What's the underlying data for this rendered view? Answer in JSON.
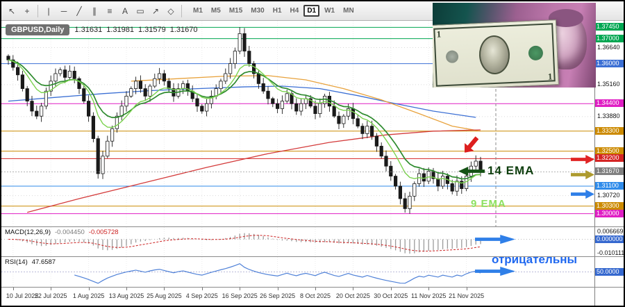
{
  "header": {
    "symbol": "GBPUSD,Daily",
    "open": "1.31631",
    "high": "1.31981",
    "low": "1.31579",
    "close": "1.31670"
  },
  "toolbar": {
    "tools": [
      {
        "name": "cursor",
        "glyph": "↖"
      },
      {
        "name": "crosshair",
        "glyph": "+"
      },
      {
        "sep": true
      },
      {
        "name": "vertical-line",
        "glyph": "|"
      },
      {
        "name": "horizontal-line",
        "glyph": "─"
      },
      {
        "name": "trendline",
        "glyph": "╱"
      },
      {
        "name": "equidistant-channel",
        "glyph": "∥"
      },
      {
        "name": "fibonacci",
        "glyph": "≡"
      },
      {
        "name": "text",
        "glyph": "A"
      },
      {
        "name": "text-label",
        "glyph": "▭"
      },
      {
        "name": "arrows",
        "glyph": "↗"
      },
      {
        "name": "shapes",
        "glyph": "◇"
      },
      {
        "sep": true
      }
    ],
    "timeframes": [
      {
        "label": "M1"
      },
      {
        "label": "M5"
      },
      {
        "label": "M15"
      },
      {
        "label": "M30"
      },
      {
        "label": "H1"
      },
      {
        "label": "H4"
      },
      {
        "label": "D1",
        "active": true
      },
      {
        "label": "W1"
      },
      {
        "label": "MN"
      }
    ]
  },
  "indicators": {
    "macd": {
      "name": "MACD(12,26,9)",
      "value_main": "-0.004450",
      "value_signal": "-0.005728",
      "axis": [
        {
          "t": "0.006669",
          "v": 0.006669
        },
        {
          "t": "0.000000",
          "v": 0,
          "bg": "#3568cf"
        },
        {
          "t": "-0.010111",
          "v": -0.010111
        }
      ]
    },
    "rsi": {
      "name": "RSI(14)",
      "value": "47.6587",
      "axis": [
        {
          "t": "50.0000",
          "v": 50,
          "bg": "#3568cf"
        }
      ]
    }
  },
  "annotations": {
    "ema14": "14 EMA",
    "ema9": "9 EMA",
    "negative": "отрицательны"
  },
  "photo": {
    "dollar_numeral": "1"
  },
  "chart_data": {
    "type": "candlestick",
    "symbol": "GBPUSD",
    "timeframe": "Daily",
    "last_price": 1.3167,
    "price_range": [
      1.296,
      1.376
    ],
    "x_labels": [
      [
        "10 Jul 2025",
        1
      ],
      [
        "22 Jul 2025",
        9
      ],
      [
        "1 Aug 2025",
        17
      ],
      [
        "13 Aug 2025",
        25
      ],
      [
        "25 Aug 2025",
        33
      ],
      [
        "4 Sep 2025",
        41
      ],
      [
        "16 Sep 2025",
        49
      ],
      [
        "26 Sep 2025",
        57
      ],
      [
        "8 Oct 2025",
        65
      ],
      [
        "20 Oct 2025",
        73
      ],
      [
        "30 Oct 2025",
        81
      ],
      [
        "11 Nov 2025",
        89
      ],
      [
        "21 Nov 2025",
        97
      ]
    ],
    "closes": [
      1.3615,
      1.3585,
      1.3555,
      1.35,
      1.345,
      1.341,
      1.339,
      1.343,
      1.349,
      1.353,
      1.356,
      1.3575,
      1.3545,
      1.357,
      1.354,
      1.35,
      1.345,
      1.339,
      1.33,
      1.316,
      1.323,
      1.329,
      1.334,
      1.339,
      1.343,
      1.347,
      1.35,
      1.353,
      1.35,
      1.347,
      1.351,
      1.354,
      1.356,
      1.353,
      1.35,
      1.347,
      1.35,
      1.352,
      1.349,
      1.346,
      1.343,
      1.341,
      1.344,
      1.347,
      1.35,
      1.353,
      1.356,
      1.36,
      1.365,
      1.372,
      1.365,
      1.36,
      1.356,
      1.352,
      1.349,
      1.346,
      1.344,
      1.342,
      1.345,
      1.348,
      1.344,
      1.341,
      1.344,
      1.346,
      1.343,
      1.34,
      1.344,
      1.347,
      1.343,
      1.339,
      1.336,
      1.339,
      1.342,
      1.338,
      1.335,
      1.332,
      1.335,
      1.331,
      1.327,
      1.323,
      1.319,
      1.315,
      1.311,
      1.306,
      1.302,
      1.307,
      1.312,
      1.316,
      1.313,
      1.317,
      1.314,
      1.311,
      1.315,
      1.312,
      1.309,
      1.313,
      1.31,
      1.315,
      1.319,
      1.321,
      1.3167
    ],
    "grid_levels": [
      1.3664,
      1.3516,
      1.3388,
      1.3072
    ],
    "hlines": [
      {
        "price": 1.3745,
        "color": "#00a651"
      },
      {
        "price": 1.37,
        "color": "#00a651"
      },
      {
        "price": 1.36,
        "color": "#3b6fd4"
      },
      {
        "price": 1.344,
        "color": "#e01ec4"
      },
      {
        "price": 1.333,
        "color": "#cc8a00"
      },
      {
        "price": 1.325,
        "color": "#cc8a00"
      },
      {
        "price": 1.322,
        "color": "#d42424"
      },
      {
        "price": 1.311,
        "color": "#2f8bea"
      },
      {
        "price": 1.303,
        "color": "#cc8a00"
      },
      {
        "price": 1.3,
        "color": "#e01ec4"
      }
    ],
    "price_axis": [
      {
        "t": "1.37450",
        "p": 1.3745,
        "bg": "#00a651"
      },
      {
        "t": "1.37000",
        "p": 1.37,
        "bg": "#00a651"
      },
      {
        "t": "1.36640",
        "p": 1.3664
      },
      {
        "t": "1.36000",
        "p": 1.36,
        "bg": "#3b6fd4"
      },
      {
        "t": "1.35160",
        "p": 1.3516
      },
      {
        "t": "1.34400",
        "p": 1.344,
        "bg": "#e01ec4"
      },
      {
        "t": "1.33880",
        "p": 1.3388
      },
      {
        "t": "1.33300",
        "p": 1.333,
        "bg": "#cc8a00"
      },
      {
        "t": "1.32500",
        "p": 1.325,
        "bg": "#cc8a00"
      },
      {
        "t": "1.32200",
        "p": 1.322,
        "bg": "#d42424"
      },
      {
        "t": "1.31670",
        "p": 1.3167,
        "bg": "#808080"
      },
      {
        "t": "1.31100",
        "p": 1.311,
        "bg": "#2f8bea"
      },
      {
        "t": "1.30720",
        "p": 1.3072
      },
      {
        "t": "1.30300",
        "p": 1.303,
        "bg": "#cc8a00"
      },
      {
        "t": "1.30000",
        "p": 1.3,
        "bg": "#e01ec4"
      }
    ],
    "ma_lines": [
      {
        "name": "ma-blue",
        "color": "#3b6fd4",
        "points": [
          [
            0.0,
            1.345
          ],
          [
            0.1,
            1.3465
          ],
          [
            0.2,
            1.348
          ],
          [
            0.3,
            1.3492
          ],
          [
            0.4,
            1.35
          ],
          [
            0.5,
            1.3507
          ],
          [
            0.58,
            1.351
          ],
          [
            0.66,
            1.35
          ],
          [
            0.74,
            1.3472
          ],
          [
            0.82,
            1.344
          ],
          [
            0.9,
            1.341
          ],
          [
            0.99,
            1.3385
          ]
        ]
      },
      {
        "name": "ma-orange",
        "color": "#e8a23c",
        "points": [
          [
            0.26,
            1.353
          ],
          [
            0.36,
            1.354
          ],
          [
            0.46,
            1.355
          ],
          [
            0.55,
            1.3552
          ],
          [
            0.63,
            1.3535
          ],
          [
            0.71,
            1.35
          ],
          [
            0.79,
            1.3455
          ],
          [
            0.87,
            1.34
          ],
          [
            0.94,
            1.335
          ],
          [
            1.0,
            1.333
          ]
        ]
      },
      {
        "name": "ma-red",
        "color": "#d43c3c",
        "points": [
          [
            0.04,
            1.3005
          ],
          [
            0.15,
            1.306
          ],
          [
            0.28,
            1.312
          ],
          [
            0.42,
            1.3185
          ],
          [
            0.55,
            1.324
          ],
          [
            0.68,
            1.3285
          ],
          [
            0.8,
            1.3315
          ],
          [
            0.9,
            1.333
          ],
          [
            1.0,
            1.3335
          ]
        ]
      }
    ],
    "emas": [
      {
        "period": 14,
        "color": "#2e8b2e"
      },
      {
        "period": 9,
        "color": "#7bd34f"
      }
    ],
    "macd_settings": {
      "fast": 12,
      "slow": 26,
      "signal": 9,
      "range": [
        -0.0101,
        0.0067
      ]
    },
    "rsi_settings": {
      "period": 14,
      "range": [
        20,
        80
      ],
      "level": 50
    }
  }
}
